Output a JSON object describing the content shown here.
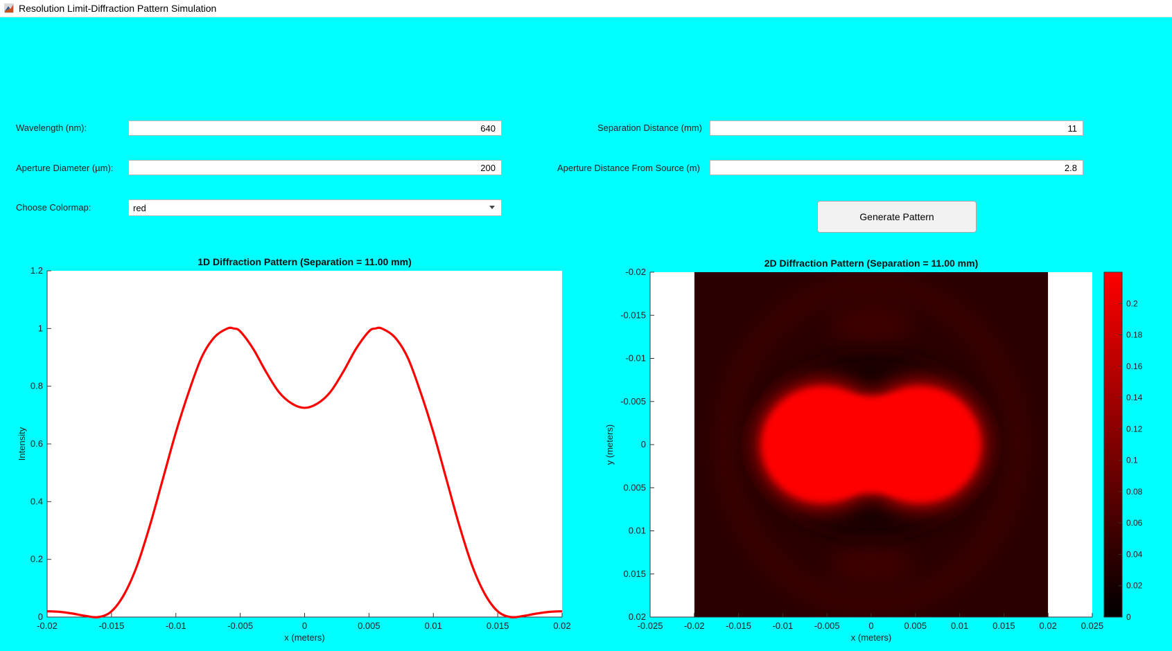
{
  "window": {
    "title": "Resolution Limit-Diffraction Pattern Simulation",
    "icon": "matlab-icon"
  },
  "controls": {
    "wavelength_label": "Wavelength (nm):",
    "wavelength_value": "640",
    "aperture_diameter_label": "Aperture Diameter (µm):",
    "aperture_diameter_value": "200",
    "colormap_label": "Choose Colormap:",
    "colormap_value": "red",
    "separation_label": "Separation Distance (mm)",
    "separation_value": "11",
    "aperture_distance_label": "Aperture Distance From Source (m)",
    "aperture_distance_value": "2.8",
    "generate_button": "Generate Pattern"
  },
  "chart_data": [
    {
      "type": "line",
      "title": "1D Diffraction Pattern (Separation = 11.00 mm)",
      "xlabel": "x (meters)",
      "ylabel": "Intensity",
      "xlim": [
        -0.02,
        0.02
      ],
      "ylim": [
        0,
        1.2
      ],
      "x_ticks": [
        "-0.02",
        "-0.015",
        "-0.01",
        "-0.005",
        "0",
        "0.005",
        "0.01",
        "0.015",
        "0.02"
      ],
      "y_ticks": [
        "0",
        "0.2",
        "0.4",
        "0.6",
        "0.8",
        "1",
        "1.2"
      ],
      "series": [
        {
          "color": "#FF0000",
          "x": [
            -0.02,
            -0.019,
            -0.018,
            -0.017,
            -0.016,
            -0.015,
            -0.014,
            -0.013,
            -0.012,
            -0.011,
            -0.01,
            -0.009,
            -0.008,
            -0.007,
            -0.006,
            -0.0055,
            -0.005,
            -0.004,
            -0.003,
            -0.002,
            -0.001,
            0,
            0.001,
            0.002,
            0.003,
            0.004,
            0.005,
            0.0055,
            0.006,
            0.007,
            0.008,
            0.009,
            0.01,
            0.011,
            0.012,
            0.013,
            0.014,
            0.015,
            0.016,
            0.017,
            0.018,
            0.019,
            0.02
          ],
          "y": [
            0.02,
            0.018,
            0.012,
            0.004,
            0.0,
            0.02,
            0.08,
            0.18,
            0.32,
            0.48,
            0.64,
            0.78,
            0.9,
            0.97,
            1.0,
            1.0,
            0.99,
            0.93,
            0.85,
            0.78,
            0.74,
            0.725,
            0.74,
            0.78,
            0.85,
            0.93,
            0.99,
            1.0,
            1.0,
            0.97,
            0.9,
            0.78,
            0.64,
            0.48,
            0.32,
            0.18,
            0.08,
            0.02,
            0.0,
            0.004,
            0.012,
            0.018,
            0.02
          ]
        }
      ]
    },
    {
      "type": "heatmap",
      "title": "2D Diffraction Pattern (Separation = 11.00 mm)",
      "xlabel": "x (meters)",
      "ylabel": "y (meters)",
      "xlim": [
        -0.025,
        0.025
      ],
      "ylim": [
        -0.02,
        0.02
      ],
      "image_extent_x": [
        -0.02,
        0.02
      ],
      "y_axis_reversed": true,
      "x_ticks": [
        "-0.025",
        "-0.02",
        "-0.015",
        "-0.01",
        "-0.005",
        "0",
        "0.005",
        "0.01",
        "0.015",
        "0.02",
        "0.025"
      ],
      "y_ticks": [
        "-0.02",
        "-0.015",
        "-0.01",
        "-0.005",
        "0",
        "0.005",
        "0.01",
        "0.015",
        "0.02"
      ],
      "sources_x": [
        -0.0055,
        0.0055
      ],
      "colormap": "red",
      "colorbar": {
        "range": [
          0,
          0.22
        ],
        "ticks": [
          "0",
          "0.02",
          "0.04",
          "0.06",
          "0.08",
          "0.1",
          "0.12",
          "0.14",
          "0.16",
          "0.18",
          "0.2"
        ],
        "color_low": "#000000",
        "color_high": "#FF0000"
      }
    }
  ]
}
